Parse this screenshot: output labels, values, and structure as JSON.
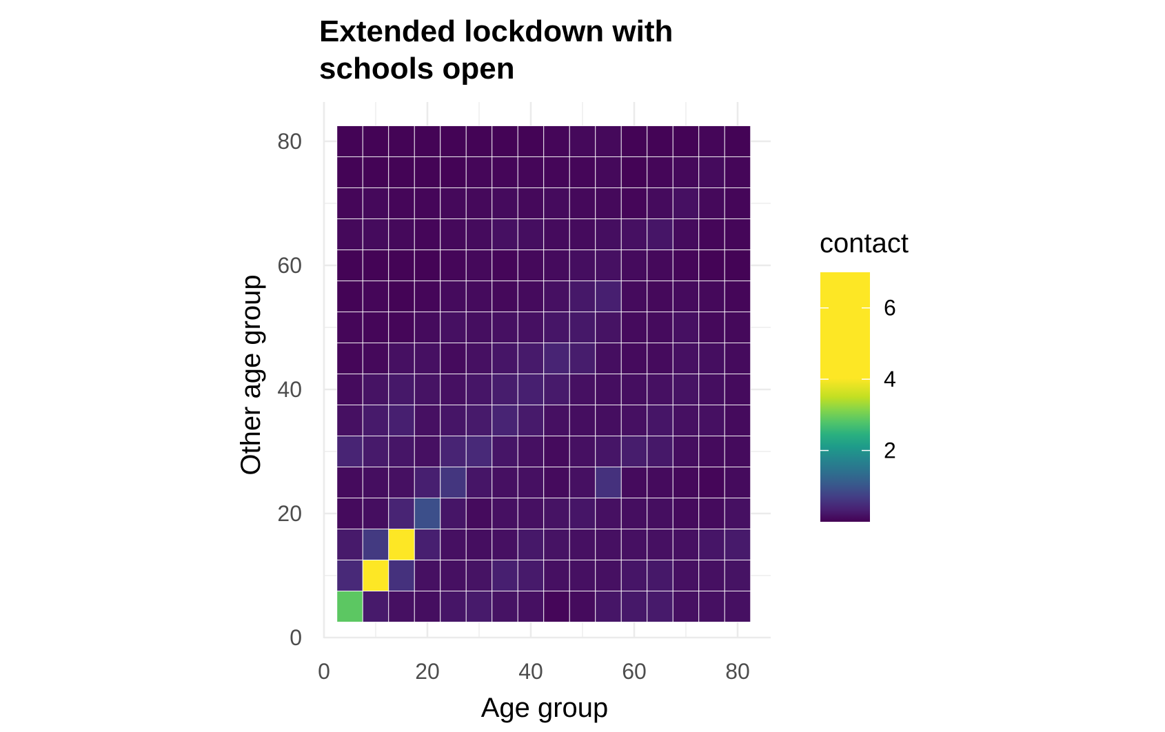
{
  "chart_data": {
    "type": "heatmap",
    "title": [
      "Extended lockdown with",
      "schools open"
    ],
    "xlabel": "Age group",
    "ylabel": "Other age group",
    "xlim": [
      0,
      82.5
    ],
    "ylim": [
      0,
      82.5
    ],
    "x_ticks": [
      0,
      20,
      40,
      60,
      80
    ],
    "y_ticks": [
      0,
      20,
      40,
      60,
      80
    ],
    "bin_width": 5,
    "x_centers": [
      5,
      10,
      15,
      20,
      25,
      30,
      35,
      40,
      45,
      50,
      55,
      60,
      65,
      70,
      75,
      80
    ],
    "y_centers": [
      5,
      10,
      15,
      20,
      25,
      30,
      35,
      40,
      45,
      50,
      55,
      60,
      65,
      70,
      75,
      80
    ],
    "grid": true,
    "colorscale": "viridis",
    "legend": {
      "title": "contact",
      "position": "right",
      "range": [
        0,
        7
      ],
      "ticks": [
        2,
        4,
        6
      ]
    },
    "values": [
      [
        5.2,
        0.5,
        0.3,
        0.25,
        0.4,
        0.5,
        0.35,
        0.3,
        0.1,
        0.2,
        0.4,
        0.45,
        0.5,
        0.3,
        0.3,
        0.3
      ],
      [
        0.8,
        7.0,
        1.0,
        0.3,
        0.3,
        0.35,
        0.6,
        0.5,
        0.3,
        0.3,
        0.3,
        0.4,
        0.45,
        0.3,
        0.3,
        0.35
      ],
      [
        0.5,
        1.2,
        7.0,
        0.6,
        0.3,
        0.25,
        0.3,
        0.45,
        0.35,
        0.3,
        0.3,
        0.3,
        0.3,
        0.3,
        0.4,
        0.5
      ],
      [
        0.2,
        0.25,
        0.7,
        1.7,
        0.4,
        0.2,
        0.3,
        0.3,
        0.35,
        0.4,
        0.3,
        0.25,
        0.25,
        0.2,
        0.2,
        0.3
      ],
      [
        0.2,
        0.25,
        0.3,
        0.6,
        1.1,
        0.4,
        0.3,
        0.3,
        0.2,
        0.3,
        1.0,
        0.2,
        0.2,
        0.15,
        0.1,
        0.2
      ],
      [
        0.7,
        0.5,
        0.4,
        0.3,
        0.7,
        0.8,
        0.4,
        0.3,
        0.2,
        0.3,
        0.4,
        0.55,
        0.45,
        0.25,
        0.2,
        0.2
      ],
      [
        0.3,
        0.5,
        0.6,
        0.3,
        0.4,
        0.5,
        0.7,
        0.5,
        0.3,
        0.25,
        0.25,
        0.3,
        0.4,
        0.3,
        0.3,
        0.2
      ],
      [
        0.2,
        0.35,
        0.45,
        0.35,
        0.3,
        0.4,
        0.55,
        0.6,
        0.5,
        0.3,
        0.25,
        0.25,
        0.3,
        0.35,
        0.25,
        0.2
      ],
      [
        0.1,
        0.15,
        0.3,
        0.3,
        0.2,
        0.3,
        0.4,
        0.5,
        0.7,
        0.55,
        0.25,
        0.2,
        0.2,
        0.3,
        0.25,
        0.2
      ],
      [
        0.1,
        0.1,
        0.1,
        0.2,
        0.3,
        0.25,
        0.3,
        0.3,
        0.4,
        0.45,
        0.35,
        0.2,
        0.2,
        0.3,
        0.15,
        0.15
      ],
      [
        0.05,
        0.1,
        0.05,
        0.1,
        0.2,
        0.2,
        0.15,
        0.2,
        0.3,
        0.45,
        0.6,
        0.2,
        0.15,
        0.2,
        0.15,
        0.1
      ],
      [
        0.05,
        0.05,
        0.05,
        0.05,
        0.1,
        0.15,
        0.1,
        0.15,
        0.2,
        0.25,
        0.3,
        0.2,
        0.15,
        0.1,
        0.05,
        0.05
      ],
      [
        0.15,
        0.2,
        0.15,
        0.1,
        0.15,
        0.2,
        0.3,
        0.25,
        0.2,
        0.2,
        0.25,
        0.3,
        0.4,
        0.2,
        0.1,
        0.1
      ],
      [
        0.1,
        0.15,
        0.1,
        0.1,
        0.15,
        0.15,
        0.2,
        0.15,
        0.2,
        0.15,
        0.15,
        0.1,
        0.2,
        0.3,
        0.15,
        0.1
      ],
      [
        0.05,
        0.05,
        0.05,
        0.05,
        0.05,
        0.1,
        0.1,
        0.1,
        0.1,
        0.1,
        0.15,
        0.05,
        0.1,
        0.15,
        0.2,
        0.1
      ],
      [
        0.05,
        0.05,
        0.05,
        0.05,
        0.05,
        0.05,
        0.05,
        0.05,
        0.1,
        0.15,
        0.15,
        0.05,
        0.05,
        0.05,
        0.1,
        0.05
      ]
    ]
  }
}
